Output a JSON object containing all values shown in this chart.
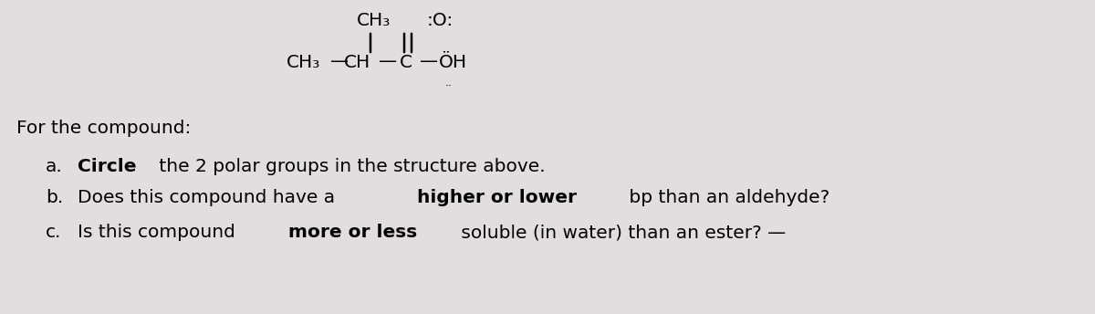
{
  "bg_color": "#e0dede",
  "fig_width": 12.0,
  "fig_height": 3.44,
  "dpi": 100,
  "struct": {
    "top_ch3_text": "CH₃",
    "top_o_text": ":O:",
    "main_ch3_text": "CH₃",
    "main_dash1": "—",
    "main_ch_text": "CH",
    "main_dash2": "—",
    "main_c_text": "C",
    "main_dash3": "—",
    "main_oh_text": "ÖH",
    "lone_pair_oh": "..",
    "lone_pair_o_top": "..",
    "lone_pair_o_bot": ".."
  },
  "for_compound": "For the compound:",
  "label_a": "a.",
  "label_b": "b.",
  "label_c": "c.",
  "line_a": [
    {
      "t": "Circle",
      "b": true
    },
    {
      "t": " the 2 polar groups in the structure above.",
      "b": false
    }
  ],
  "line_b": [
    {
      "t": "Does this compound have a ",
      "b": false
    },
    {
      "t": "higher or lower",
      "b": true
    },
    {
      "t": " bp than an aldehyde?",
      "b": false
    }
  ],
  "line_c": [
    {
      "t": "Is this compound ",
      "b": false
    },
    {
      "t": "more or less",
      "b": true
    },
    {
      "t": " soluble (in water) than an ester? —",
      "b": false
    }
  ],
  "fontsize": 14.5,
  "fontfamily": "DejaVu Sans"
}
